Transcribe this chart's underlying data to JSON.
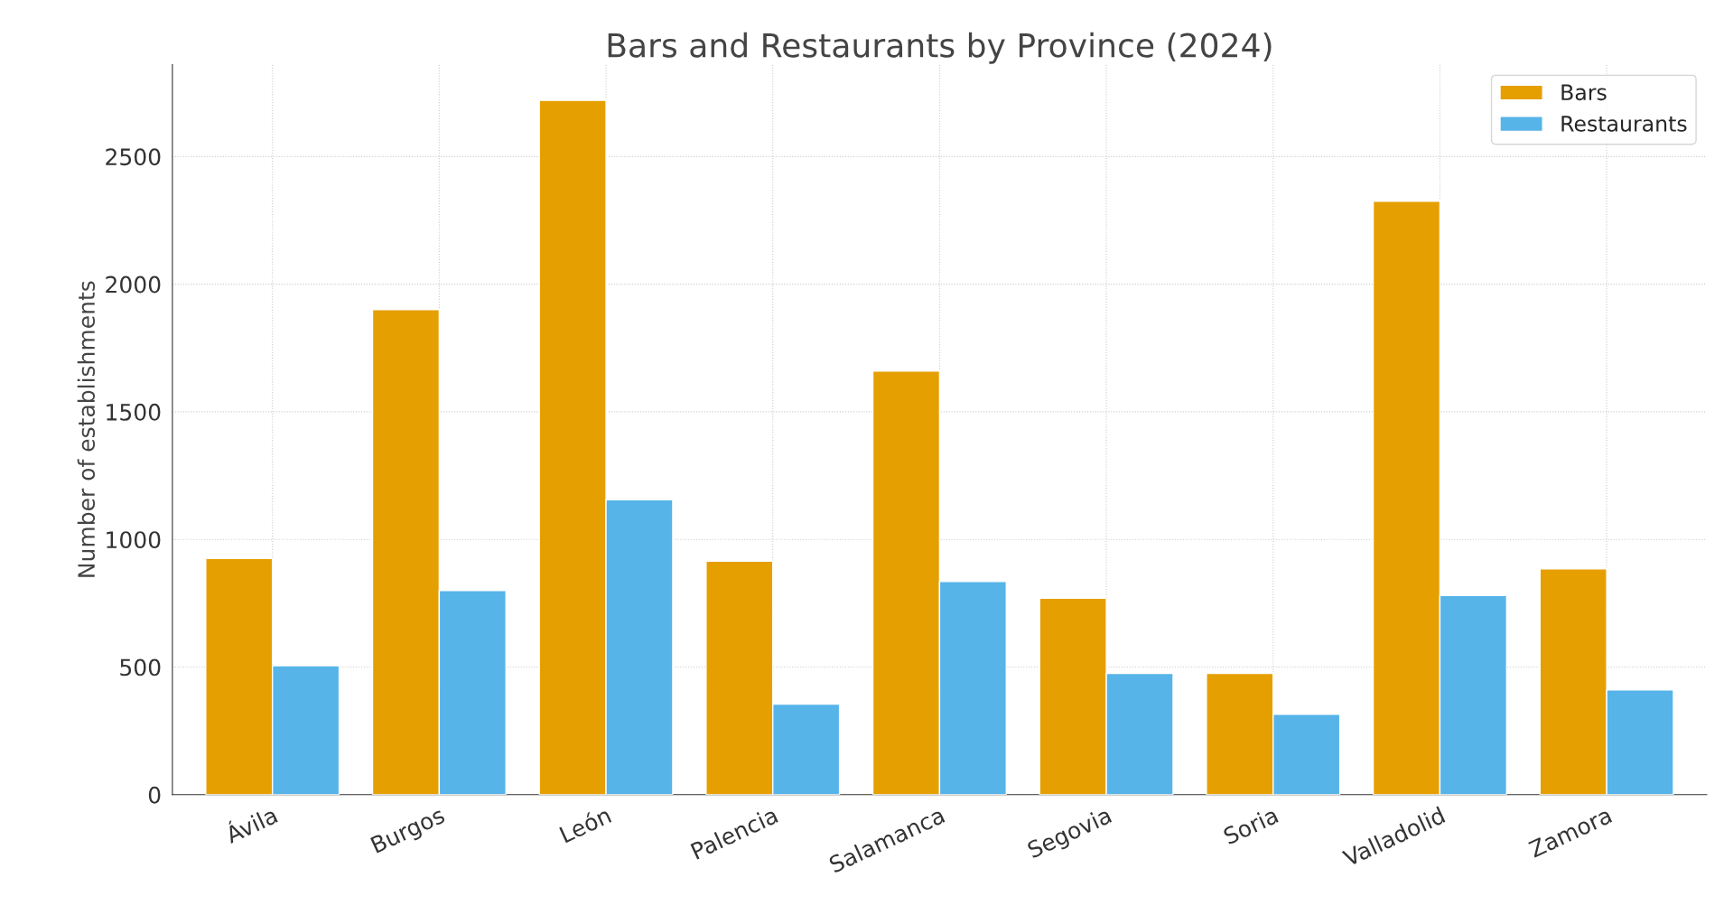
{
  "chart_data": {
    "type": "bar",
    "title": "Bars and Restaurants by Province (2024)",
    "ylabel": "Number of establishments",
    "categories": [
      "Ávila",
      "Burgos",
      "León",
      "Palencia",
      "Salamanca",
      "Segovia",
      "Soria",
      "Valladolid",
      "Zamora"
    ],
    "series": [
      {
        "name": "Bars",
        "color": "#e69f00",
        "values": [
          925,
          1900,
          2720,
          915,
          1660,
          770,
          475,
          2325,
          885
        ]
      },
      {
        "name": "Restaurants",
        "color": "#56b4e9",
        "values": [
          505,
          800,
          1155,
          355,
          835,
          475,
          315,
          780,
          410
        ]
      }
    ],
    "ylim": [
      0,
      2860
    ],
    "yticks": [
      0,
      500,
      1000,
      1500,
      2000,
      2500
    ],
    "grid": true,
    "legend": "top right"
  }
}
